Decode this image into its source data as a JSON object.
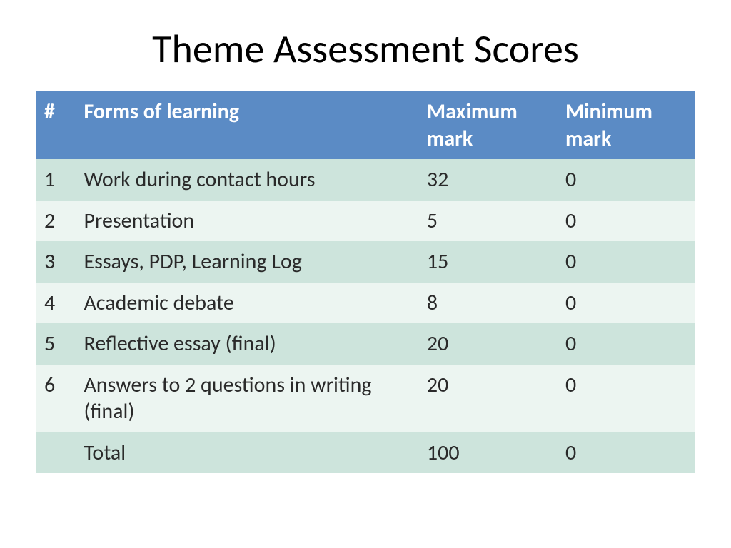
{
  "title": "Theme Assessment Scores",
  "table": {
    "header_bg": "#5b8bc5",
    "header_fg": "#ffffff",
    "row_bg_odd": "#cde4dc",
    "row_bg_even": "#ecf5f1",
    "cell_fg": "#2a2a2a",
    "columns": [
      "#",
      "Forms of learning",
      "Maximum mark",
      "Minimum mark"
    ],
    "rows": [
      [
        "1",
        "Work during contact hours",
        "32",
        "0"
      ],
      [
        "2",
        "Presentation",
        "5",
        "0"
      ],
      [
        "3",
        "Essays, PDP, Learning Log",
        "15",
        "0"
      ],
      [
        "4",
        "Academic debate",
        "8",
        "0"
      ],
      [
        "5",
        "Reflective essay (final)",
        "20",
        "0"
      ],
      [
        "6",
        "Answers to 2 questions in writing (final)",
        "20",
        "0"
      ],
      [
        "",
        "Total",
        "100",
        "0"
      ]
    ]
  }
}
